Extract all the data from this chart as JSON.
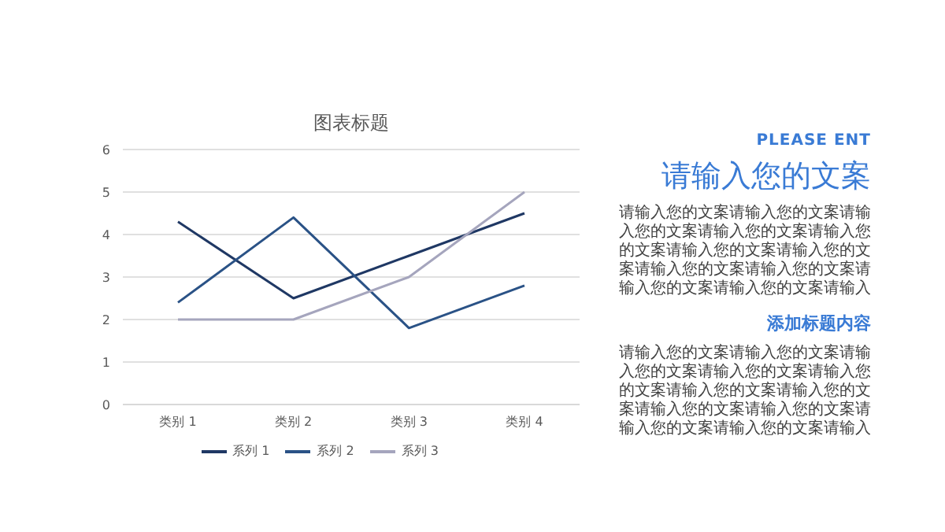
{
  "chart_data": [
    {
      "type": "line",
      "title": "图表标题",
      "categories": [
        "类别 1",
        "类别 2",
        "类别 3",
        "类别 4"
      ],
      "series": [
        {
          "name": "系列 1",
          "color": "#1f3864",
          "values": [
            4.3,
            2.5,
            3.5,
            4.5
          ]
        },
        {
          "name": "系列 2",
          "color": "#2a5286",
          "values": [
            2.4,
            4.4,
            1.8,
            2.8
          ]
        },
        {
          "name": "系列 3",
          "color": "#a5a5bd",
          "values": [
            2,
            2,
            3,
            5
          ]
        }
      ],
      "ylim": [
        0,
        6
      ],
      "yticks": [
        0,
        1,
        2,
        3,
        4,
        5,
        6
      ],
      "grid": "y",
      "legend": "bottom",
      "marker": "none",
      "line_style": "solid"
    },
    {
      "type": "other",
      "subtitle": "PLEASE ENT",
      "title": "请输入您的文案",
      "annotations": [
        "请输入您的文案请输入您的文案请输入您的文案请输入您的文案请输入您的文案请输入您的文案请输入您的文案请输入您的文案请输入您的文案请输入您的文案请输入您的文案请输入",
        "添加标题内容",
        "请输入您的文案请输入您的文案请输入您的文案请输入您的文案请输入您的文案请输入您的文案请输入您的文案请输入您的文案请输入您的文案请输入您的文案请输入您的文案请输入"
      ]
    }
  ]
}
